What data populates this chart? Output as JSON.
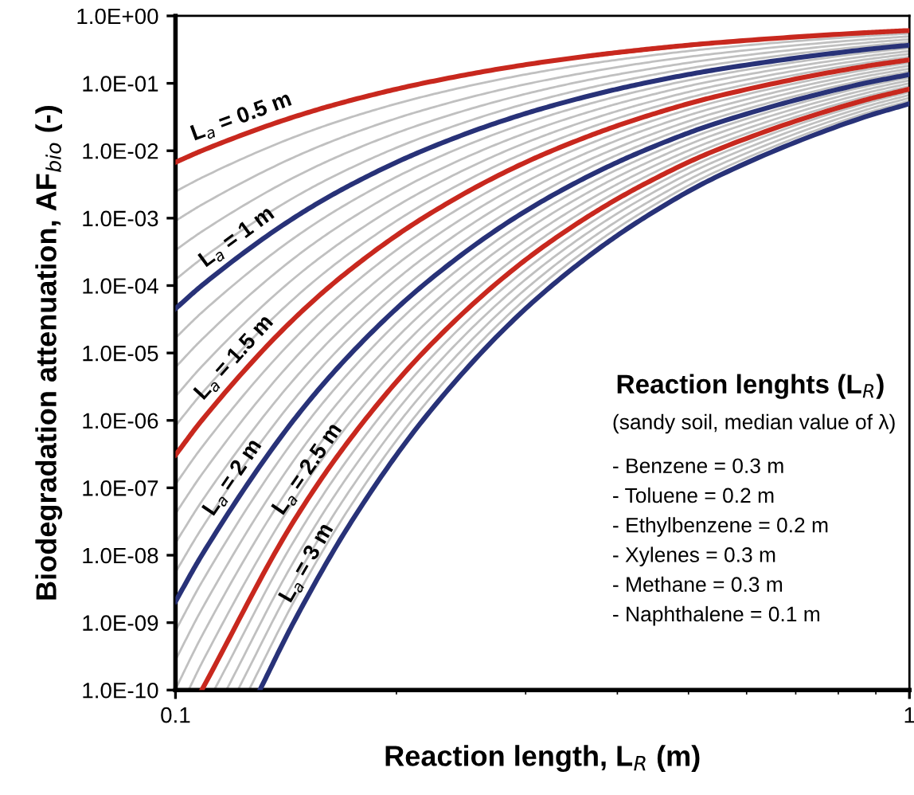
{
  "chart_data": {
    "type": "line",
    "log": "xy",
    "legend": false,
    "marker": "none",
    "line_style": "solid",
    "xlabel": "Reaction length, L$_{R}$ (m)",
    "ylabel": "Biodegradation attenuation, AF$_{bio}$ (-)",
    "xlim": [
      0.1,
      1
    ],
    "xticks": [
      0.1,
      1
    ],
    "ylim": [
      1e-10,
      1
    ],
    "yticks": [
      {
        "value": 1e-10,
        "label": "1.0E-10"
      },
      {
        "value": 1e-09,
        "label": "1.0E-09"
      },
      {
        "value": 1e-08,
        "label": "1.0E-08"
      },
      {
        "value": 1e-07,
        "label": "1.0E-07"
      },
      {
        "value": 1e-06,
        "label": "1.0E-06"
      },
      {
        "value": 1e-05,
        "label": "1.0E-05"
      },
      {
        "value": 0.0001,
        "label": "1.0E-04"
      },
      {
        "value": 0.001,
        "label": "1.0E-03"
      },
      {
        "value": 0.01,
        "label": "1.0E-02"
      },
      {
        "value": 0.1,
        "label": "1.0E-01"
      },
      {
        "value": 1,
        "label": "1.0E+00"
      }
    ],
    "x": [
      0.1,
      0.1086,
      0.1448,
      0.1737,
      0.2172,
      0.2895,
      0.3619,
      0.4343,
      0.5429,
      0.8686,
      1
    ],
    "annotations": [
      "Reaction lenghts (L$_{R}$)",
      "(sandy soil, median value of λ)",
      "- Benzene = 0.3 m",
      "- Toluene = 0.2 m",
      "- Ethylbenzene = 0.2 m",
      "- Xylenes = 0.3 m",
      "- Methane = 0.3 m",
      "- Naphthalene = 0.1 m"
    ],
    "series": [
      {
        "name": "L$_{a}$ = 0.5 m",
        "color": "#c8281e",
        "values": [
          0.00674,
          0.01,
          0.0316,
          0.0562,
          0.1,
          0.178,
          0.251,
          0.316,
          0.398,
          0.562,
          0.607
        ]
      },
      {
        "color": "#c0c0c0",
        "values": [
          0.00248,
          0.00398,
          0.0158,
          0.0316,
          0.0631,
          0.126,
          0.191,
          0.251,
          0.331,
          0.501,
          0.549
        ]
      },
      {
        "color": "#c0c0c0",
        "values": [
          0.000912,
          0.00158,
          0.00794,
          0.0178,
          0.0398,
          0.0891,
          0.144,
          0.2,
          0.275,
          0.447,
          0.497
        ]
      },
      {
        "color": "#c0c0c0",
        "values": [
          0.000335,
          0.000631,
          0.00398,
          0.01,
          0.0251,
          0.0631,
          0.11,
          0.158,
          0.229,
          0.398,
          0.449
        ]
      },
      {
        "color": "#c0c0c0",
        "values": [
          0.000123,
          0.000251,
          0.002,
          0.00562,
          0.0158,
          0.0447,
          0.0832,
          0.126,
          0.191,
          0.355,
          0.407
        ]
      },
      {
        "name": "L$_{a}$ = 1 m",
        "color": "#283278",
        "values": [
          4.54e-05,
          0.0001,
          0.001,
          0.00316,
          0.01,
          0.0316,
          0.0631,
          0.1,
          0.158,
          0.316,
          0.368
        ]
      },
      {
        "color": "#c0c0c0",
        "values": [
          1.67e-05,
          3.98e-05,
          0.000501,
          0.00178,
          0.00631,
          0.0224,
          0.0479,
          0.0794,
          0.132,
          0.282,
          0.333
        ]
      },
      {
        "color": "#c0c0c0",
        "values": [
          6.14e-06,
          1.58e-05,
          0.000251,
          0.001,
          0.00398,
          0.0158,
          0.0363,
          0.0631,
          0.11,
          0.251,
          0.301
        ]
      },
      {
        "color": "#c0c0c0",
        "values": [
          2.26e-06,
          6.31e-06,
          0.000126,
          0.000562,
          0.00251,
          0.0112,
          0.0275,
          0.0501,
          0.0912,
          0.224,
          0.273
        ]
      },
      {
        "color": "#c0c0c0",
        "values": [
          8.32e-07,
          2.51e-06,
          6.31e-05,
          0.000316,
          0.00158,
          0.00794,
          0.0209,
          0.0398,
          0.0759,
          0.2,
          0.247
        ]
      },
      {
        "name": "L$_{a}$ = 1.5 m",
        "color": "#c8281e",
        "values": [
          3.06e-07,
          1e-06,
          3.16e-05,
          0.000178,
          0.001,
          0.00562,
          0.0158,
          0.0316,
          0.0631,
          0.178,
          0.223
        ]
      },
      {
        "color": "#c0c0c0",
        "values": [
          1.13e-07,
          3.98e-07,
          1.58e-05,
          0.0001,
          0.000631,
          0.00398,
          0.012,
          0.0251,
          0.0525,
          0.158,
          0.202
        ]
      },
      {
        "color": "#c0c0c0",
        "values": [
          4.14e-08,
          1.58e-07,
          7.94e-06,
          5.62e-05,
          0.000398,
          0.00282,
          0.00912,
          0.02,
          0.0436,
          0.141,
          0.183
        ]
      },
      {
        "color": "#c0c0c0",
        "values": [
          1.52e-08,
          6.31e-08,
          3.98e-06,
          3.16e-05,
          0.000251,
          0.002,
          0.00692,
          0.0158,
          0.0363,
          0.126,
          0.165
        ]
      },
      {
        "color": "#c0c0c0",
        "values": [
          5.6e-09,
          2.51e-08,
          2e-06,
          1.78e-05,
          0.000158,
          0.00141,
          0.00525,
          0.0126,
          0.0302,
          0.112,
          0.15
        ]
      },
      {
        "name": "L$_{a}$ = 2 m",
        "color": "#283278",
        "values": [
          2.06e-09,
          1e-08,
          1e-06,
          1e-05,
          0.0001,
          0.001,
          0.00398,
          0.01,
          0.0251,
          0.1,
          0.135
        ]
      },
      {
        "color": "#c0c0c0",
        "values": [
          7.58e-10,
          3.98e-09,
          5.01e-07,
          5.62e-06,
          6.31e-05,
          0.000708,
          0.00302,
          0.00794,
          0.0209,
          0.0891,
          0.122
        ]
      },
      {
        "color": "#c0c0c0",
        "values": [
          2.79e-10,
          1.58e-09,
          2.51e-07,
          3.16e-06,
          3.98e-05,
          0.000501,
          0.00229,
          0.00631,
          0.0174,
          0.0794,
          0.111
        ]
      },
      {
        "color": "#c0c0c0",
        "values": [
          1.03e-10,
          6.31e-10,
          1.26e-07,
          1.78e-06,
          2.51e-05,
          0.000355,
          0.00174,
          0.00501,
          0.0144,
          0.0708,
          0.1
        ]
      },
      {
        "color": "#c0c0c0",
        "x": [
          0.1042,
          0.1086,
          0.1448,
          0.1737,
          0.2172,
          0.2895,
          0.3619,
          0.4343,
          0.5429,
          0.8686,
          1
        ],
        "values": [
          1e-10,
          2.51e-10,
          6.31e-08,
          1e-06,
          1.58e-05,
          0.000251,
          0.00132,
          0.00398,
          0.012,
          0.0631,
          0.0907
        ]
      },
      {
        "name": "L$_{a}$ = 2.5 m",
        "color": "#c8281e",
        "x": [
          0.1086,
          0.1448,
          0.1737,
          0.2172,
          0.2895,
          0.3619,
          0.4343,
          0.5429,
          0.8686,
          1
        ],
        "values": [
          1e-10,
          3.16e-08,
          5.62e-07,
          1e-05,
          0.000178,
          0.001,
          0.00316,
          0.01,
          0.0562,
          0.0821
        ]
      },
      {
        "color": "#c0c0c0",
        "x": [
          0.1129,
          0.1448,
          0.1737,
          0.2172,
          0.2895,
          0.3619,
          0.4343,
          0.5429,
          0.8686,
          1
        ],
        "values": [
          1e-10,
          1.58e-08,
          3.16e-07,
          6.31e-06,
          0.000126,
          0.000759,
          0.00251,
          0.00832,
          0.0501,
          0.0743
        ]
      },
      {
        "color": "#c0c0c0",
        "x": [
          0.1173,
          0.1448,
          0.1737,
          0.2172,
          0.2895,
          0.3619,
          0.4343,
          0.5429,
          0.8686,
          1
        ],
        "values": [
          1e-10,
          7.94e-09,
          1.78e-07,
          3.98e-06,
          8.91e-05,
          0.000575,
          0.002,
          0.00692,
          0.0447,
          0.0672
        ]
      },
      {
        "color": "#c0c0c0",
        "x": [
          0.1216,
          0.1448,
          0.1737,
          0.2172,
          0.2895,
          0.3619,
          0.4343,
          0.5429,
          0.8686,
          1
        ],
        "values": [
          1e-10,
          3.98e-09,
          1e-07,
          2.51e-06,
          6.31e-05,
          0.000436,
          0.00158,
          0.00575,
          0.0398,
          0.0608
        ]
      },
      {
        "color": "#c0c0c0",
        "x": [
          0.1259,
          0.1448,
          0.1737,
          0.2172,
          0.2895,
          0.3619,
          0.4343,
          0.5429,
          0.8686,
          1
        ],
        "values": [
          1e-10,
          2e-09,
          5.62e-08,
          1.58e-06,
          4.47e-05,
          0.000331,
          0.00126,
          0.00479,
          0.0355,
          0.055
        ]
      },
      {
        "name": "L$_{a}$ = 3 m",
        "color": "#283278",
        "x": [
          0.1303,
          0.1448,
          0.1737,
          0.2172,
          0.2895,
          0.3619,
          0.4343,
          0.5429,
          0.8686,
          1
        ],
        "values": [
          1e-10,
          1e-09,
          3.16e-08,
          1e-06,
          3.16e-05,
          0.000251,
          0.001,
          0.00398,
          0.0316,
          0.0498
        ]
      }
    ]
  }
}
